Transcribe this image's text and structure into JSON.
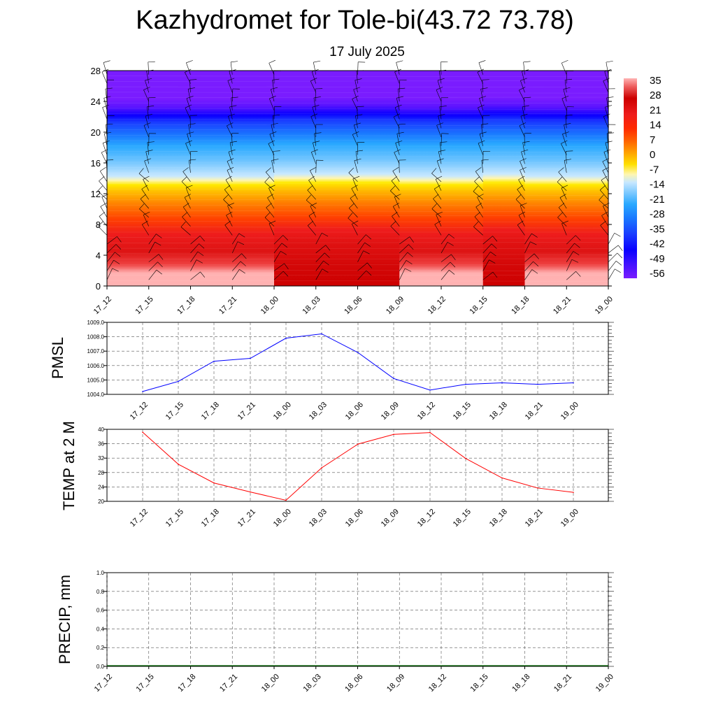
{
  "header": {
    "title": "Kazhydromet for Tole-bi(43.72 73.78)",
    "subtitle": "17 July 2025"
  },
  "chart_data": [
    {
      "type": "heatmap",
      "name": "temperature-wind-profile",
      "x_labels": [
        "17_12",
        "17_15",
        "17_18",
        "17_21",
        "18_00",
        "18_03",
        "18_06",
        "18_09",
        "18_12",
        "18_15",
        "18_18",
        "18_21",
        "19_00"
      ],
      "y_ticks": [
        0,
        4,
        8,
        12,
        16,
        20,
        24,
        28
      ],
      "ylim": [
        0,
        28
      ],
      "colorbar_labels": [
        35,
        28,
        21,
        14,
        7,
        0,
        -7,
        -14,
        -21,
        -28,
        -35,
        -42,
        -49,
        -56
      ],
      "colorbar_range": [
        -60,
        38
      ],
      "colors": {
        "warm_max": "#ffb3b3",
        "hot": "#cc0000",
        "red": "#ee1c1c",
        "orange": "#ff7a00",
        "yellow": "#ffe000",
        "pale_yellow": "#fff6b0",
        "light_blue": "#b3dcff",
        "sky_blue": "#29a8ff",
        "blue": "#1a3cff",
        "deep_blue": "#0a00ff",
        "violet": "#7a1cff"
      },
      "approx_isotherm_heights": [
        {
          "temp": 14,
          "height": 10.5
        },
        {
          "temp": 0,
          "height": 13.2
        },
        {
          "temp": -14,
          "height": 14.0
        },
        {
          "temp": -42,
          "height": 20.0
        },
        {
          "temp": -56,
          "height": 22.5
        }
      ],
      "wind_barbs": true,
      "grid": false
    },
    {
      "type": "line",
      "name": "PMSL",
      "ylabel": "PMSL",
      "x": [
        "17_12",
        "17_15",
        "17_18",
        "17_21",
        "18_00",
        "18_03",
        "18_06",
        "18_09",
        "18_12",
        "18_15",
        "18_18",
        "18_21",
        "19_00"
      ],
      "values": [
        1004.2,
        1004.9,
        1006.3,
        1006.5,
        1007.9,
        1008.2,
        1006.9,
        1005.1,
        1004.3,
        1004.7,
        1004.8,
        1004.7,
        1004.8
      ],
      "ylim": [
        1004.0,
        1009.0
      ],
      "y_ticks": [
        "1004.0",
        "1005.0",
        "1006.0",
        "1007.0",
        "1008.0",
        "1009.0"
      ],
      "color": "#0000ff",
      "grid": true
    },
    {
      "type": "line",
      "name": "TEMP at 2 M",
      "ylabel": "TEMP at 2 M",
      "x": [
        "17_12",
        "17_15",
        "17_18",
        "17_21",
        "18_00",
        "18_03",
        "18_06",
        "18_09",
        "18_12",
        "18_15",
        "18_18",
        "18_21",
        "19_00"
      ],
      "values": [
        39.2,
        30.3,
        25.1,
        22.6,
        20.3,
        29.3,
        35.9,
        38.6,
        39.1,
        31.9,
        26.5,
        23.7,
        22.5
      ],
      "ylim": [
        20,
        40
      ],
      "y_ticks": [
        "20",
        "24",
        "28",
        "32",
        "36",
        "40"
      ],
      "color": "#ff0000",
      "grid": true
    },
    {
      "type": "bar",
      "name": "PRECIP, mm",
      "ylabel": "PRECIP, mm",
      "x": [
        "17_12",
        "17_15",
        "17_18",
        "17_21",
        "18_00",
        "18_03",
        "18_06",
        "18_09",
        "18_12",
        "18_15",
        "18_18",
        "18_21",
        "19_00"
      ],
      "values": [
        0,
        0,
        0,
        0,
        0,
        0,
        0,
        0,
        0,
        0,
        0,
        0,
        0
      ],
      "ylim": [
        0,
        1.0
      ],
      "y_ticks": [
        "0.0",
        "0.2",
        "0.4",
        "0.6",
        "0.8",
        "1.0"
      ],
      "color": "#006400",
      "grid": true
    }
  ]
}
